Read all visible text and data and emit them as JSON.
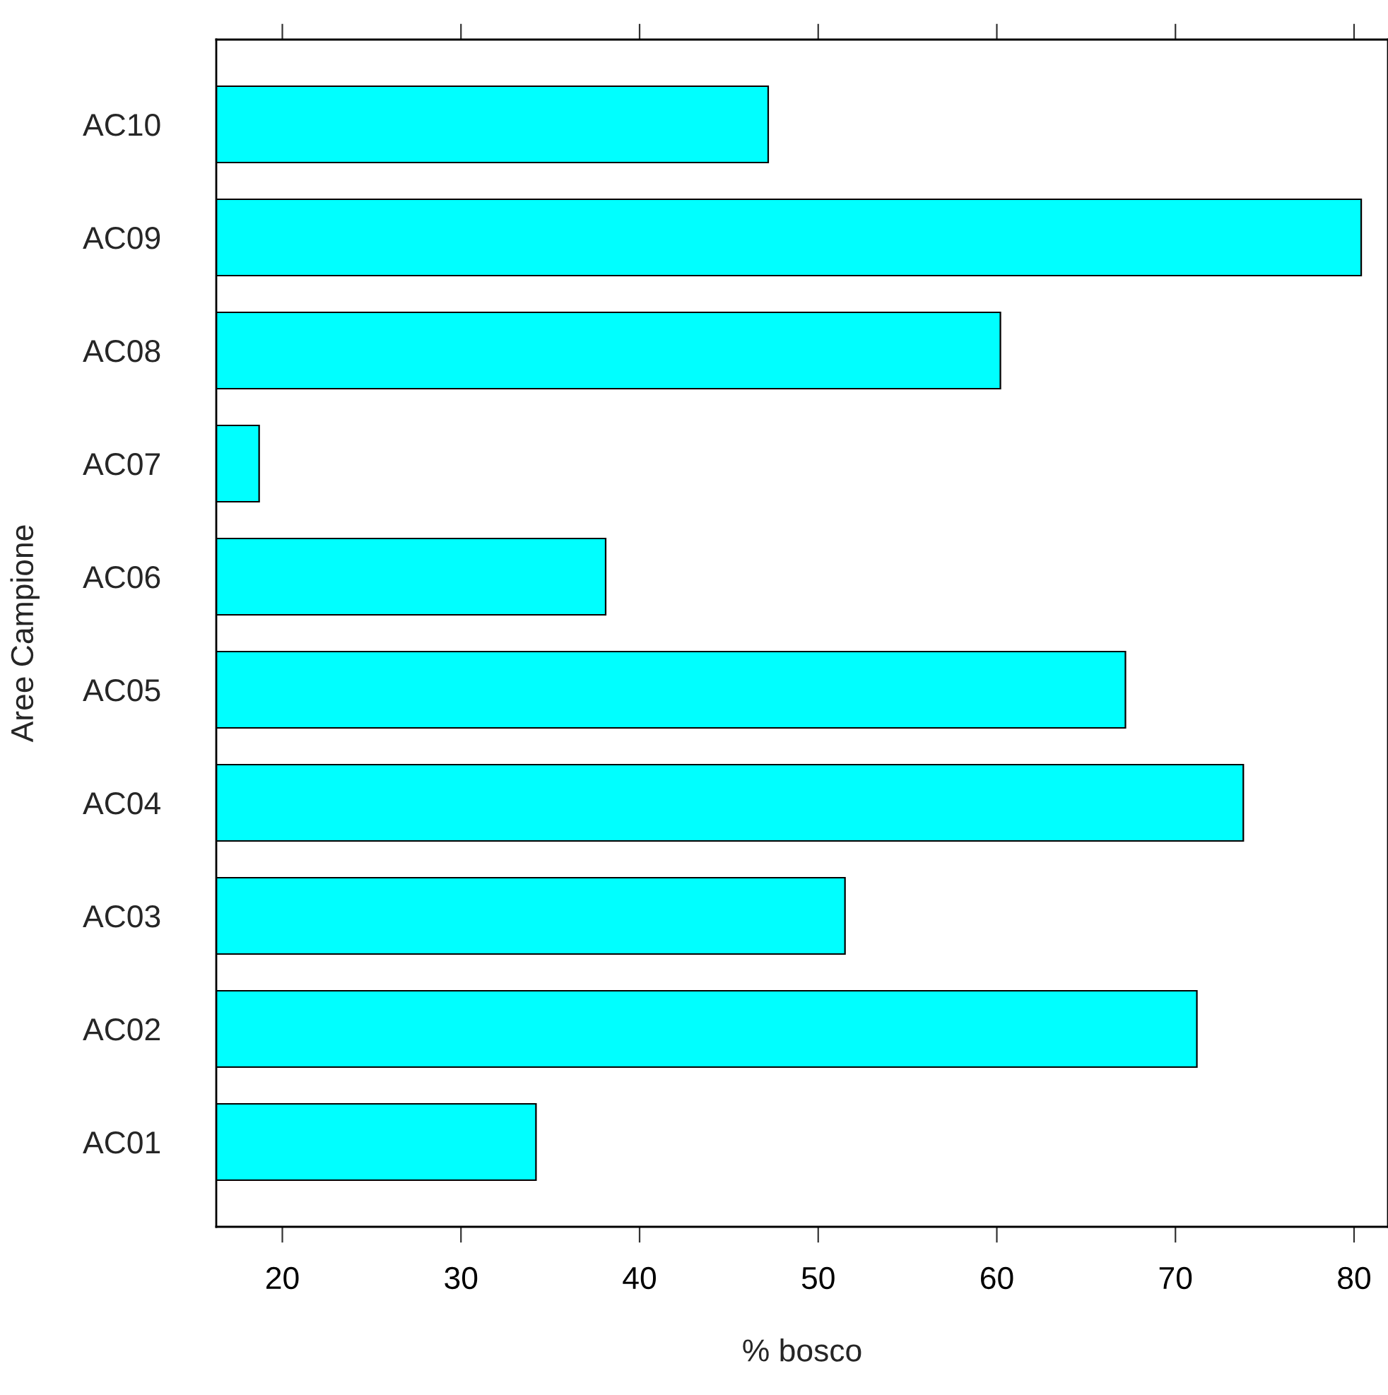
{
  "chart_data": {
    "type": "bar",
    "orientation": "horizontal",
    "xlabel": "% bosco",
    "ylabel": "Aree Campione",
    "categories": [
      "AC10",
      "AC09",
      "AC08",
      "AC07",
      "AC06",
      "AC05",
      "AC04",
      "AC03",
      "AC02",
      "AC01"
    ],
    "values": [
      47.2,
      80.4,
      60.2,
      18.7,
      38.1,
      67.2,
      73.8,
      51.5,
      71.2,
      34.2
    ],
    "color": "#00ffff",
    "xlim": [
      16.3,
      81.9
    ],
    "xticks": [
      20,
      30,
      40,
      50,
      60,
      70,
      80
    ],
    "grid": false,
    "legend": false
  }
}
